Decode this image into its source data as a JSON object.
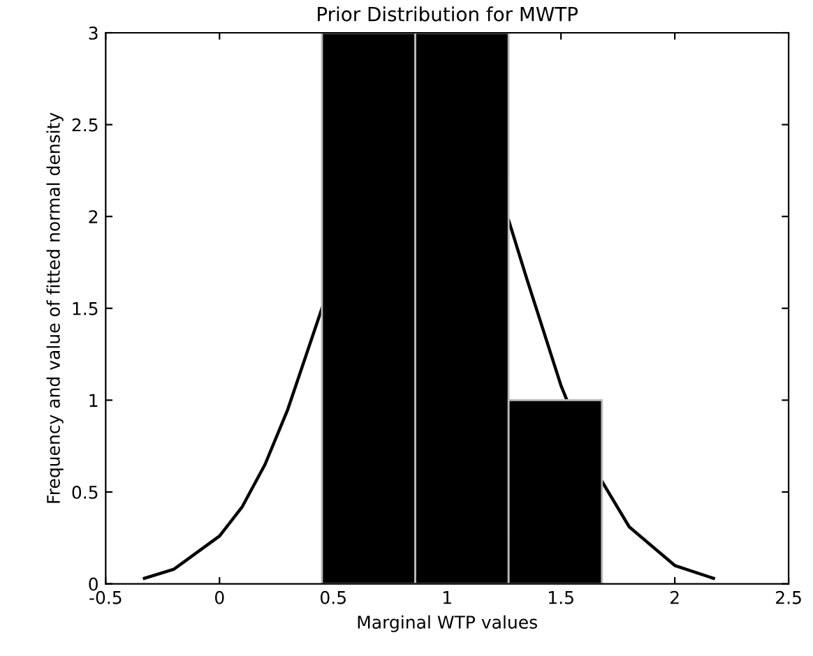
{
  "chart_data": {
    "type": "histogram",
    "title": "Prior Distribution for MWTP",
    "xlabel": "Marginal WTP values",
    "ylabel": "Frequency and value of fitted normal density",
    "bins": [
      0.45,
      0.86,
      1.27,
      1.68
    ],
    "values": [
      3,
      3,
      1
    ],
    "color": "#000000",
    "series": [
      {
        "type": "line",
        "color": "#000000",
        "x": [
          -0.33,
          -0.2,
          0,
          0.1,
          0.2,
          0.3,
          0.45,
          0.6,
          0.75,
          0.92,
          1.05,
          1.2,
          1.27,
          1.35,
          1.5,
          1.65,
          1.8,
          2.0,
          2.17
        ],
        "values": [
          0.03,
          0.08,
          0.26,
          0.42,
          0.65,
          0.95,
          1.5,
          null,
          null,
          null,
          null,
          null,
          1.98,
          1.66,
          1.08,
          0.62,
          0.31,
          0.1,
          0.03
        ]
      }
    ],
    "xlim": [
      -0.5,
      2.5
    ],
    "xticks": [
      -0.5,
      0,
      0.5,
      1,
      1.5,
      2,
      2.5
    ],
    "ylim": [
      0,
      3
    ],
    "yticks": [
      0,
      0.5,
      1,
      1.5,
      2,
      2.5,
      3
    ],
    "grid": false,
    "legend": false
  }
}
